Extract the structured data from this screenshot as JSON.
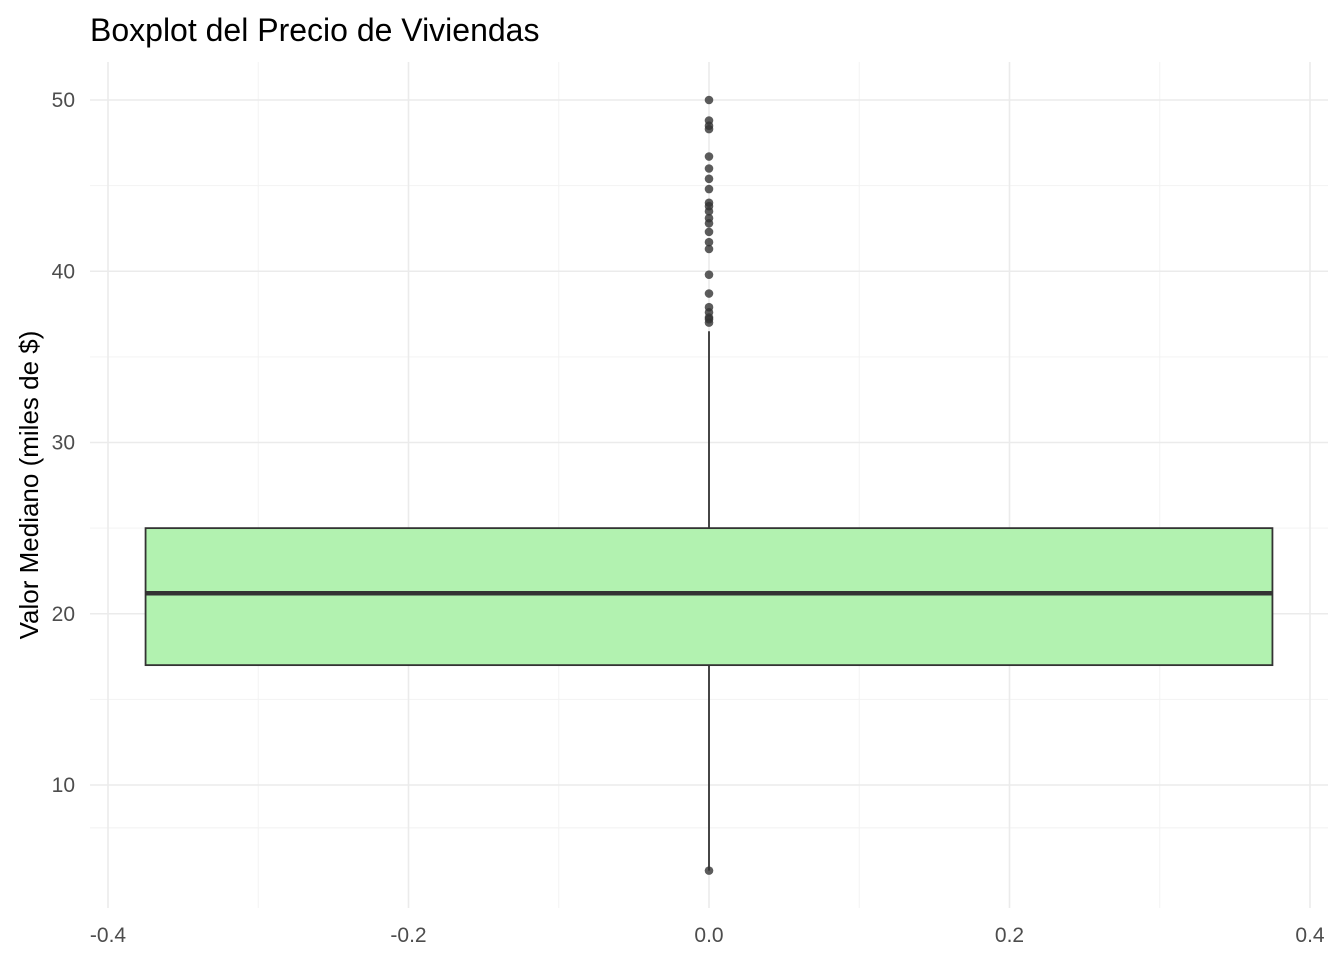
{
  "chart_data": {
    "type": "boxplot",
    "title": "Boxplot del Precio de Viviendas",
    "xlabel": "",
    "ylabel": "Valor Mediano (miles de $)",
    "xlim": [
      -0.4,
      0.4
    ],
    "ylim": [
      5,
      50
    ],
    "x_ticks": [
      -0.4,
      -0.2,
      0.0,
      0.2,
      0.4
    ],
    "x_tick_labels": [
      "-0.4",
      "-0.2",
      "0.0",
      "0.2",
      "0.4"
    ],
    "y_ticks": [
      10,
      20,
      30,
      40,
      50
    ],
    "y_tick_labels": [
      "10",
      "20",
      "30",
      "40",
      "50"
    ],
    "grid": true,
    "box": {
      "x_center": 0.0,
      "x_left": -0.375,
      "x_right": 0.375,
      "lower_whisker": 5.0,
      "q1": 17.0,
      "median": 21.2,
      "q3": 25.0,
      "upper_whisker": 36.5,
      "fill_color": "#b2f2b0",
      "line_color": "#333333"
    },
    "outliers": [
      50.0,
      48.8,
      48.5,
      48.3,
      46.7,
      46.0,
      45.4,
      44.8,
      44.0,
      43.8,
      43.5,
      43.1,
      42.8,
      42.3,
      41.7,
      41.3,
      39.8,
      38.7,
      37.9,
      37.6,
      37.3,
      37.2,
      37.0,
      5.0
    ],
    "outlier_color": "#333333"
  }
}
